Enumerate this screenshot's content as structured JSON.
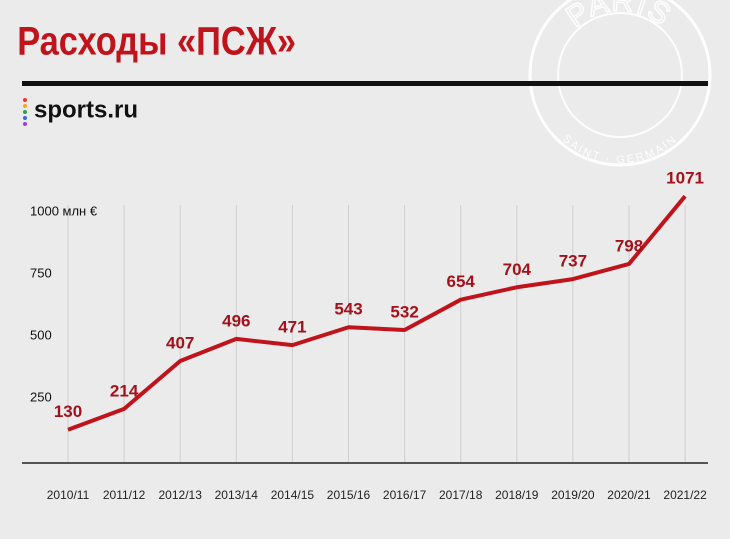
{
  "chart_data": {
    "type": "line",
    "title": "Расходы «ПСЖ»",
    "source": "sports.ru",
    "watermark_text": [
      "PARIS",
      "SAINT · GERMAIN"
    ],
    "categories": [
      "2010/11",
      "2011/12",
      "2012/13",
      "2013/14",
      "2014/15",
      "2015/16",
      "2016/17",
      "2017/18",
      "2018/19",
      "2019/20",
      "2020/21",
      "2021/22"
    ],
    "values": [
      130,
      214,
      407,
      496,
      471,
      543,
      532,
      654,
      704,
      737,
      798,
      1071
    ],
    "color": "#c0141c",
    "ylim": [
      0,
      1100
    ],
    "yticks": [
      250,
      500,
      750,
      {
        "value": 1000,
        "label": "1000 млн €"
      }
    ],
    "grid": true
  }
}
